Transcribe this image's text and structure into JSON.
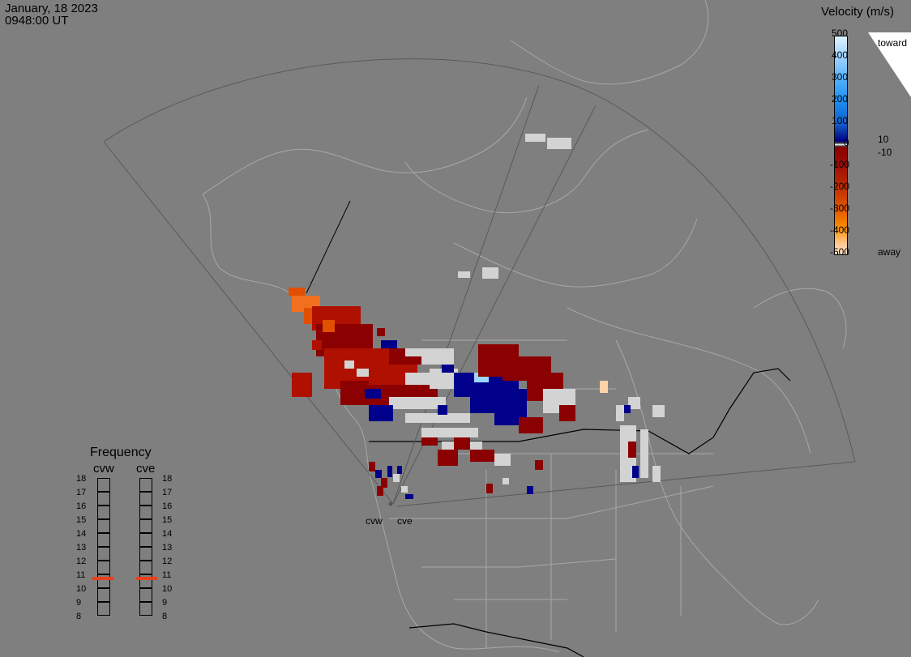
{
  "header": {
    "date": "January, 18 2023",
    "time": "0948:00 UT"
  },
  "radars": {
    "west": "cvw",
    "east": "cve"
  },
  "colorbar": {
    "title": "Velocity (m/s)",
    "ticks": [
      "500",
      "400",
      "300",
      "200",
      "100",
      "0",
      "-100",
      "-200",
      "-300",
      "-400",
      "-500"
    ],
    "label_pos_10": "10",
    "label_neg_10": "-10",
    "label_top": "toward",
    "label_bottom": "away",
    "colors": {
      "toward_light": "#c6e8ff",
      "toward_mid": "#1a8ef0",
      "toward_dark": "#00008b",
      "away_dark": "#8b0000",
      "away_mid": "#e35b00",
      "away_light": "#ffd8b0",
      "ground_scatter": "#d3d3d3"
    }
  },
  "frequency": {
    "title": "Frequency",
    "col_west": "cvw",
    "col_east": "cve",
    "levels": [
      "18",
      "17",
      "16",
      "15",
      "14",
      "13",
      "12",
      "11",
      "10",
      "9",
      "8"
    ],
    "selected_west_mhz": 10.6,
    "selected_east_mhz": 10.6,
    "marker_color": "#e8401c"
  }
}
